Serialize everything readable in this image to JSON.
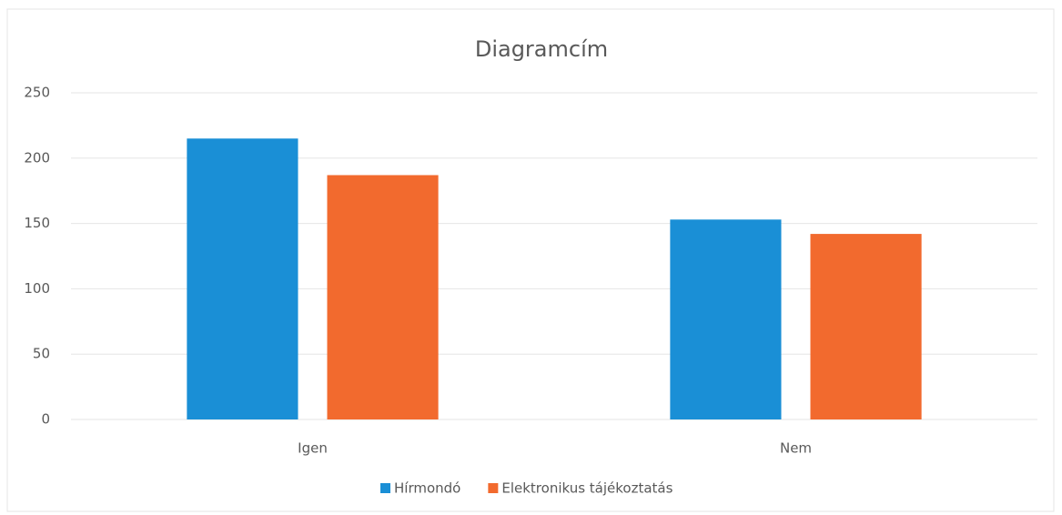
{
  "chart_data": {
    "type": "bar",
    "title": "Diagramcím",
    "categories": [
      "Igen",
      "Nem"
    ],
    "series": [
      {
        "name": "Hírmondó",
        "color": "#1a8fd6",
        "values": [
          215,
          153
        ]
      },
      {
        "name": "Elektronikus tájékoztatás",
        "color": "#f26a2e",
        "values": [
          187,
          142
        ]
      }
    ],
    "ylim": [
      0,
      250
    ],
    "yticks": [
      0,
      50,
      100,
      150,
      200,
      250
    ],
    "grid": true,
    "legend": "bottom"
  }
}
